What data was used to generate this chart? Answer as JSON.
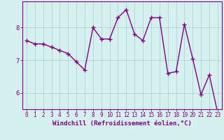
{
  "xlabel": "Windchill (Refroidissement éolien,°C)",
  "x": [
    0,
    1,
    2,
    3,
    4,
    5,
    6,
    7,
    8,
    9,
    10,
    11,
    12,
    13,
    14,
    15,
    16,
    17,
    18,
    19,
    20,
    21,
    22,
    23
  ],
  "y": [
    7.6,
    7.5,
    7.5,
    7.4,
    7.3,
    7.2,
    6.95,
    6.7,
    8.0,
    7.65,
    7.65,
    8.3,
    8.55,
    7.8,
    7.6,
    8.3,
    8.3,
    6.6,
    6.65,
    8.1,
    7.05,
    5.95,
    6.55,
    5.4
  ],
  "line_color": "#800080",
  "marker": "+",
  "marker_size": 4,
  "line_width": 1.0,
  "bg_color": "#d6f0f0",
  "grid_color": "#aed4d4",
  "ylim": [
    5.5,
    8.8
  ],
  "yticks": [
    6,
    7,
    8
  ],
  "xticks": [
    0,
    1,
    2,
    3,
    4,
    5,
    6,
    7,
    8,
    9,
    10,
    11,
    12,
    13,
    14,
    15,
    16,
    17,
    18,
    19,
    20,
    21,
    22,
    23
  ],
  "tick_label_fontsize": 5.5,
  "xlabel_fontsize": 6.5,
  "axis_color": "#800080"
}
